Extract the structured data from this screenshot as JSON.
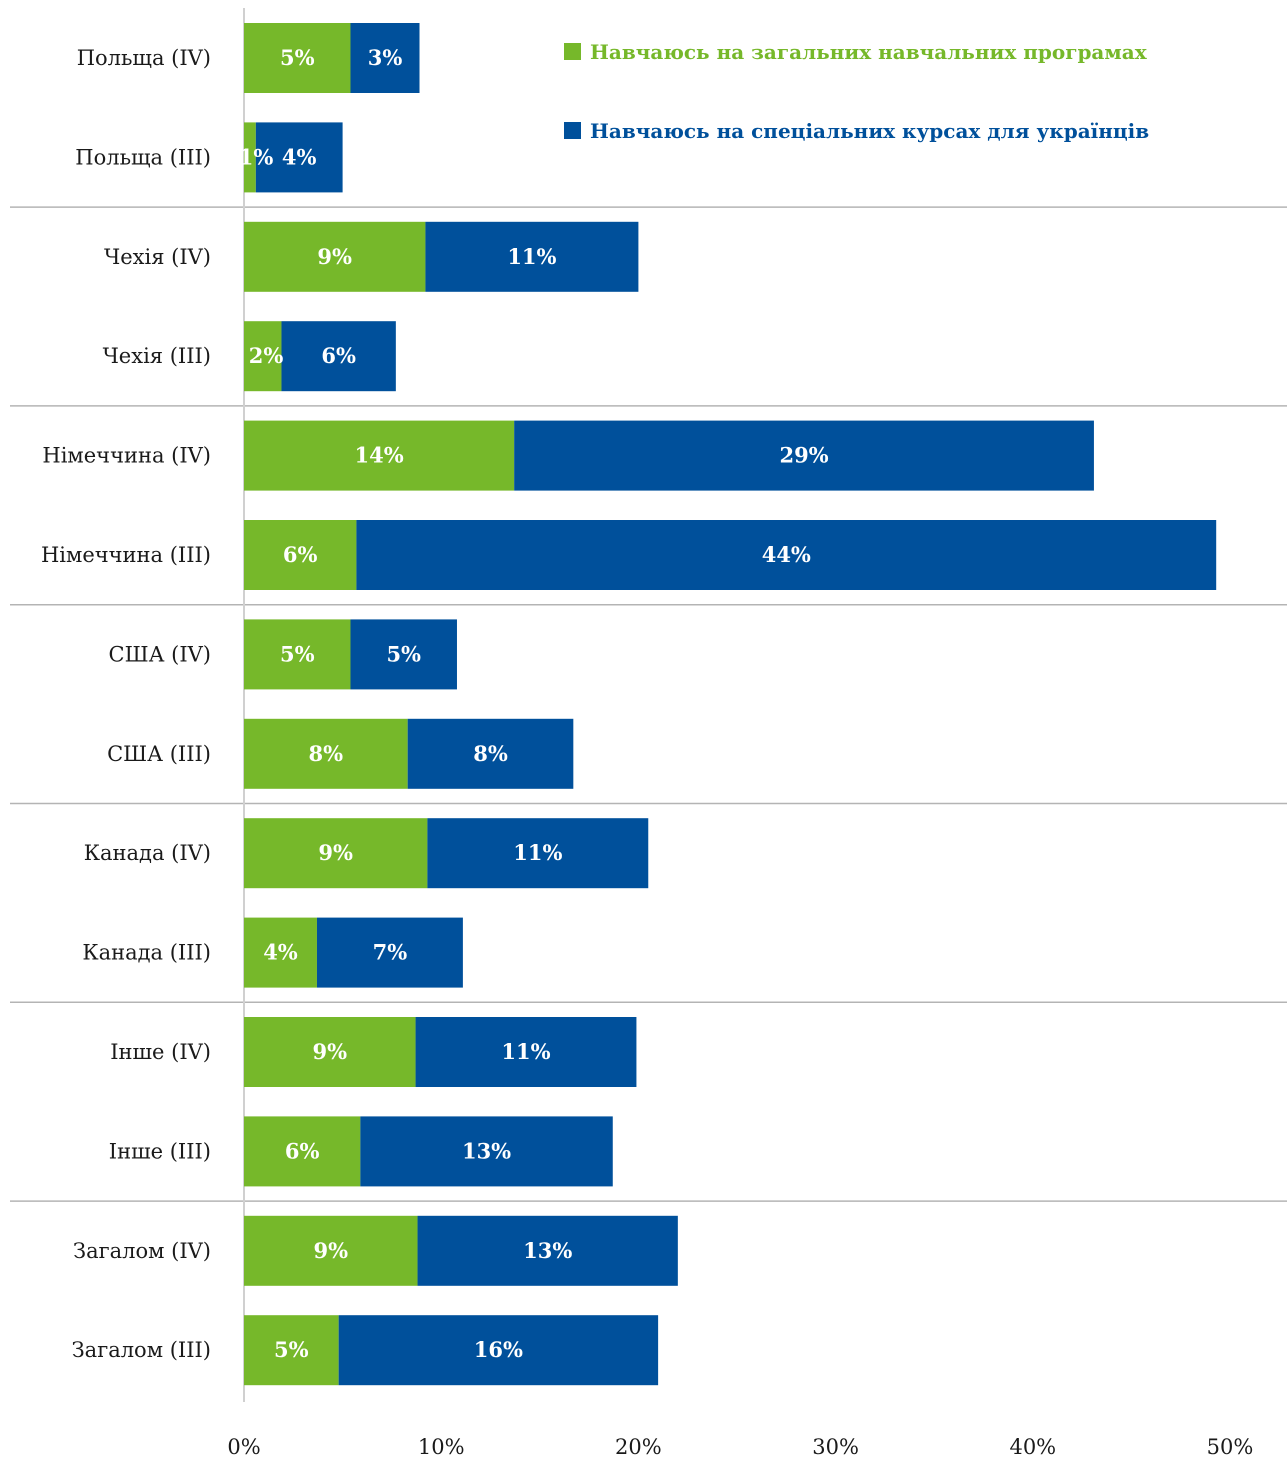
{
  "chart_data": {
    "type": "bar",
    "orientation": "horizontal",
    "stacked": true,
    "categories": [
      "Польща (IV)",
      "Польща (III)",
      "Чехія (IV)",
      "Чехія (III)",
      "Німеччина (IV)",
      "Німеччина (III)",
      "США (IV)",
      "США (III)",
      "Канада (IV)",
      "Канада (III)",
      "Інше (IV)",
      "Інше (III)",
      "Загалом (IV)",
      "Загалом (III)"
    ],
    "series": [
      {
        "name": "Навчаюсь на загальних навчальних програмах",
        "color": "#76b82a",
        "values": [
          5.4,
          0.6,
          9.2,
          1.9,
          13.7,
          5.7,
          5.4,
          8.3,
          9.3,
          3.7,
          8.7,
          5.9,
          8.8,
          4.8
        ],
        "labels": [
          "5%",
          "1%",
          "9%",
          "2%",
          "14%",
          "6%",
          "5%",
          "8%",
          "9%",
          "4%",
          "9%",
          "6%",
          "9%",
          "5%"
        ]
      },
      {
        "name": "Навчаюсь на спеціальних курсах для українців",
        "color": "#00509b",
        "values": [
          3.5,
          4.4,
          10.8,
          5.8,
          29.4,
          43.6,
          5.4,
          8.4,
          11.2,
          7.4,
          11.2,
          12.8,
          13.2,
          16.2
        ],
        "labels": [
          "3%",
          "4%",
          "11%",
          "6%",
          "29%",
          "44%",
          "5%",
          "8%",
          "11%",
          "7%",
          "11%",
          "13%",
          "13%",
          "16%"
        ]
      }
    ],
    "x_ticks": [
      "0%",
      "10%",
      "20%",
      "30%",
      "40%",
      "50%"
    ],
    "xlim": [
      0,
      50
    ],
    "group_separators_after": [
      1,
      3,
      5,
      7,
      9,
      11
    ],
    "legend_position": "top-right",
    "grid": false
  }
}
